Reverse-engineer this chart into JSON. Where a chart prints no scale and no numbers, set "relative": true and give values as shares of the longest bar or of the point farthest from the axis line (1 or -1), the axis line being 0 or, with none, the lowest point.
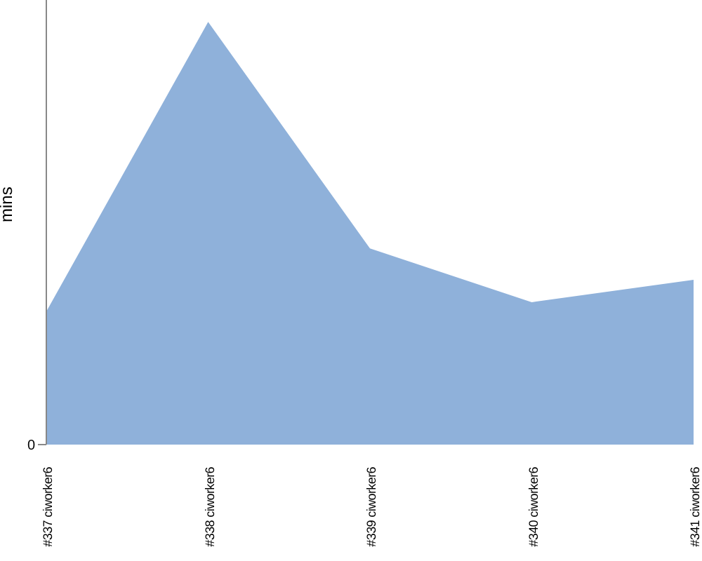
{
  "chart_data": {
    "type": "area",
    "ylabel": "mins",
    "relative": true,
    "annotations": [
      "0"
    ],
    "categories": [
      "#337 ciworker6",
      "#338 ciworker6",
      "#339 ciworker6",
      "#340 ciworker6",
      "#341 ciworker6"
    ],
    "series": [
      {
        "color": "#8fb1da",
        "values": [
          0.315,
          1,
          0.464,
          0.337,
          0.39
        ]
      }
    ]
  }
}
